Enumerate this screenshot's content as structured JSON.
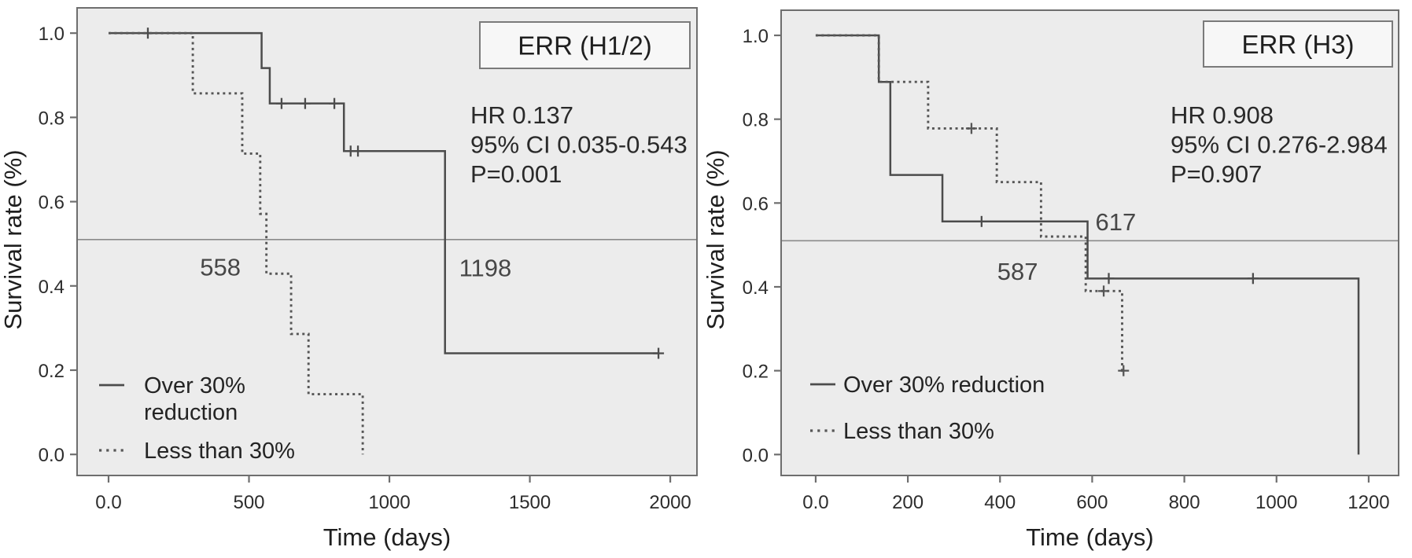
{
  "figure": {
    "description": "Kaplan-Meier survival curves comparing tumor reduction groups",
    "colors": {
      "plot_bg": "#ececec",
      "frame": "#6e6e6e",
      "solid_curve": "#4c4c4c",
      "dotted_curve": "#565656",
      "reference_line": "#8a8a8a",
      "text": "#2d2d2d",
      "annotation_text": "#474747",
      "title_box_bg": "#f7f7f7",
      "title_box_border": "#7a7a7a"
    }
  },
  "chart_data": [
    {
      "type": "line",
      "subtype": "kaplan-meier-step",
      "panel_title": "ERR (H1/2)",
      "stats_lines": [
        "HR 0.137",
        "95% CI 0.035-0.543",
        "P=0.001"
      ],
      "xlabel": "Time (days)",
      "ylabel": "Survival rate (%)",
      "xlim": [
        -112,
        2095
      ],
      "ylim": [
        -0.05,
        1.06
      ],
      "xticks": {
        "values": [
          0,
          500,
          1000,
          1500,
          2000
        ],
        "labels": [
          "0.0",
          "500",
          "1000",
          "1500",
          "2000"
        ]
      },
      "yticks": {
        "values": [
          0.0,
          0.2,
          0.4,
          0.6,
          0.8,
          1.0
        ],
        "labels": [
          "0.0",
          "0.2",
          "0.4",
          "0.6",
          "0.8",
          "1.0"
        ]
      },
      "grid": false,
      "reference_line_y": 0.51,
      "series": [
        {
          "name": "Over 30% reduction",
          "style": "solid",
          "steps": [
            [
              0,
              1.0
            ],
            [
              545,
              0.917
            ],
            [
              574,
              0.833
            ],
            [
              838,
              0.72
            ],
            [
              1198,
              0.24
            ],
            [
              1958,
              0.24
            ]
          ],
          "censors": [
            [
              140,
              1.0
            ],
            [
              616,
              0.833
            ],
            [
              700,
              0.833
            ],
            [
              804,
              0.833
            ],
            [
              862,
              0.72
            ],
            [
              888,
              0.72
            ],
            [
              1958,
              0.24
            ]
          ]
        },
        {
          "name": "Less than 30%",
          "style": "dotted",
          "steps": [
            [
              0,
              1.0
            ],
            [
              300,
              0.857
            ],
            [
              476,
              0.714
            ],
            [
              540,
              0.571
            ],
            [
              562,
              0.429
            ],
            [
              650,
              0.286
            ],
            [
              712,
              0.143
            ],
            [
              905,
              0.0
            ]
          ],
          "censors": []
        }
      ],
      "annotations": [
        {
          "text": "558",
          "x": 398,
          "y": 0.425,
          "anchor": "middle"
        },
        {
          "text": "1198",
          "x": 1248,
          "y": 0.423,
          "anchor": "start"
        }
      ],
      "legend": {
        "position": "bottom-left",
        "items": [
          {
            "lines": [
              "Over 30%",
              "reduction"
            ],
            "style": "solid"
          },
          {
            "lines": [
              "Less than 30%"
            ],
            "style": "dotted"
          }
        ]
      }
    },
    {
      "type": "line",
      "subtype": "kaplan-meier-step",
      "panel_title": "ERR (H3)",
      "stats_lines": [
        "HR 0.908",
        "95% CI 0.276-2.984",
        "P=0.907"
      ],
      "xlabel": "Time (days)",
      "ylabel": "Survival rate (%)",
      "xlim": [
        -75,
        1265
      ],
      "ylim": [
        -0.05,
        1.06
      ],
      "xticks": {
        "values": [
          0,
          200,
          400,
          600,
          800,
          1000,
          1200
        ],
        "labels": [
          "0.0",
          "200",
          "400",
          "600",
          "800",
          "1000",
          "1200"
        ]
      },
      "yticks": {
        "values": [
          0.0,
          0.2,
          0.4,
          0.6,
          0.8,
          1.0
        ],
        "labels": [
          "0.0",
          "0.2",
          "0.4",
          "0.6",
          "0.8",
          "1.0"
        ]
      },
      "grid": false,
      "reference_line_y": 0.51,
      "series": [
        {
          "name": "Over 30% reduction",
          "style": "solid",
          "steps": [
            [
              0,
              1.0
            ],
            [
              137,
              0.889
            ],
            [
              162,
              0.667
            ],
            [
              275,
              0.556
            ],
            [
              590,
              0.42
            ],
            [
              1178,
              0.0
            ]
          ],
          "censors": [
            [
              360,
              0.556
            ],
            [
              636,
              0.42
            ],
            [
              949,
              0.42
            ]
          ]
        },
        {
          "name": "Less than 30%",
          "style": "dotted",
          "steps": [
            [
              0,
              1.0
            ],
            [
              137,
              0.889
            ],
            [
              244,
              0.778
            ],
            [
              393,
              0.65
            ],
            [
              489,
              0.52
            ],
            [
              586,
              0.39
            ],
            [
              665,
              0.2
            ],
            [
              672,
              0.2
            ]
          ],
          "censors": [
            [
              338,
              0.778
            ],
            [
              625,
              0.39
            ],
            [
              668,
              0.2
            ]
          ]
        }
      ],
      "annotations": [
        {
          "text": "617",
          "x": 607,
          "y": 0.535,
          "anchor": "start"
        },
        {
          "text": "587",
          "x": 394,
          "y": 0.417,
          "anchor": "start"
        }
      ],
      "legend": {
        "position": "bottom-left",
        "items": [
          {
            "lines": [
              "Over 30% reduction"
            ],
            "style": "solid"
          },
          {
            "lines": [
              "Less than 30%"
            ],
            "style": "dotted"
          }
        ]
      }
    }
  ]
}
